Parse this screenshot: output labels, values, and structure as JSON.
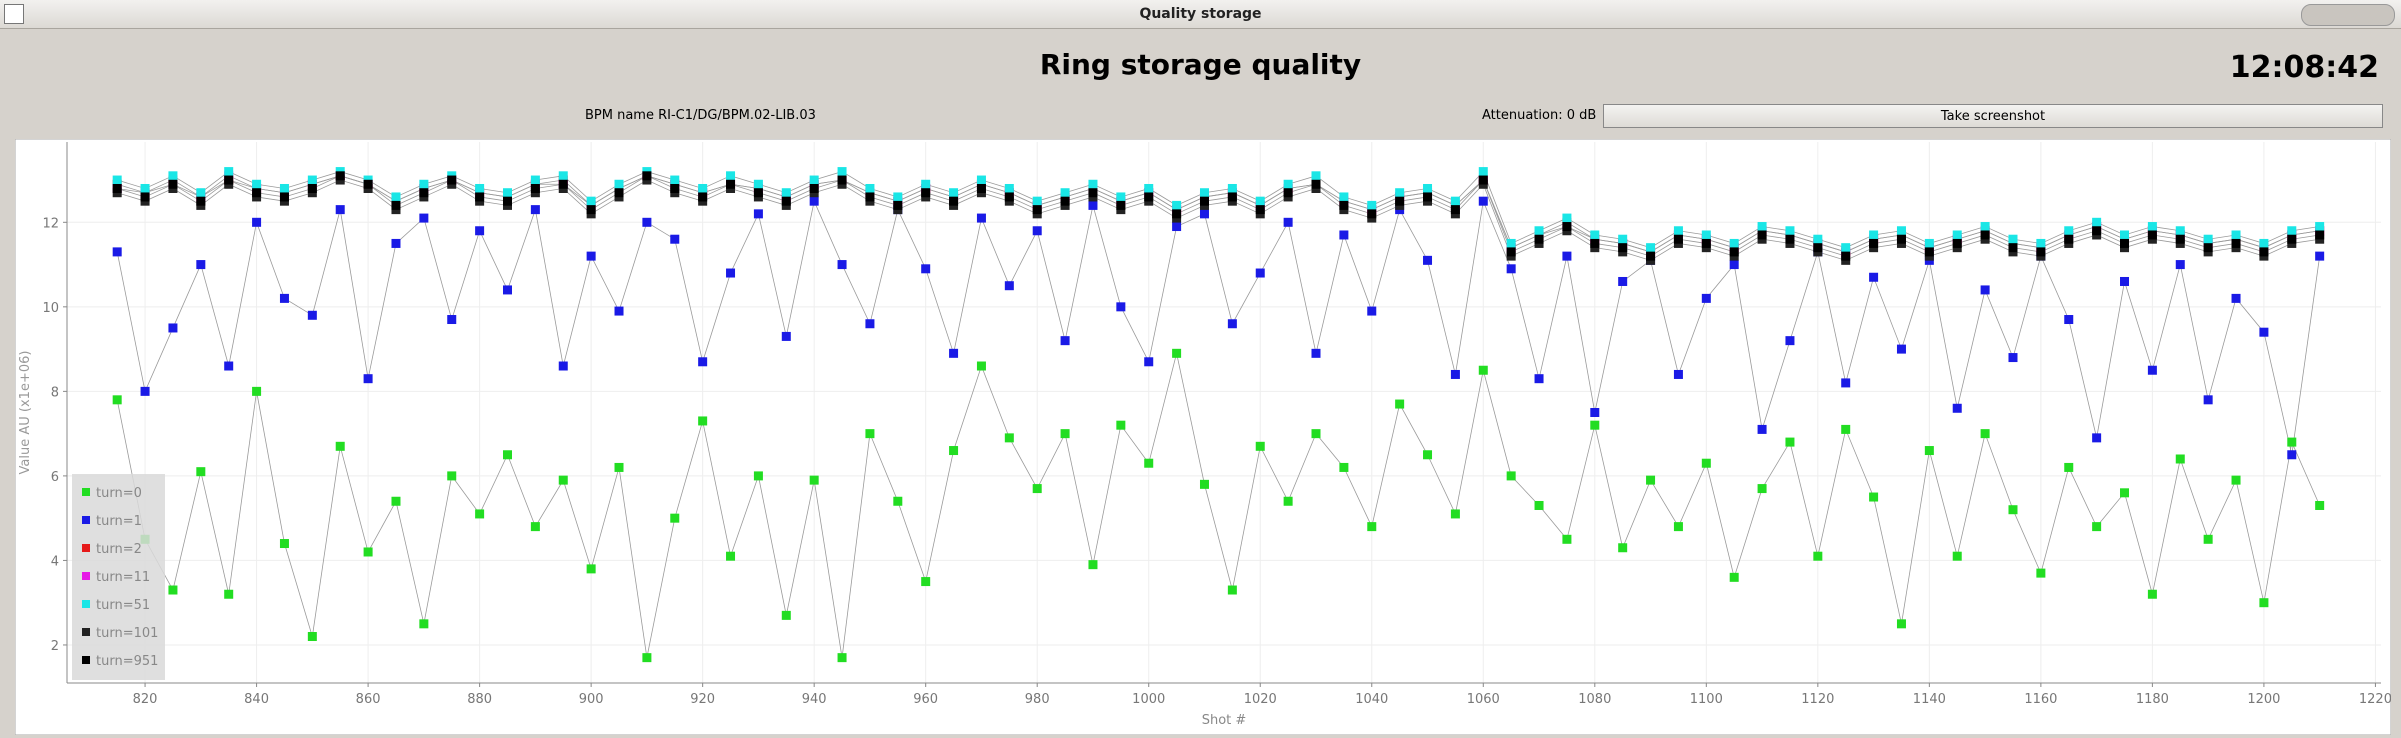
{
  "window_title": "Quality storage",
  "app_title": "Ring storage quality",
  "clock": "12:08:42",
  "bpm_name": "BPM name RI-C1/DG/BPM.02-LIB.03",
  "attenuation": "Attenuation: 0 dB",
  "button": "Take screenshot",
  "chart_data": {
    "type": "scatter",
    "xlabel": "Shot #",
    "ylabel": "Value AU (x1e+06)",
    "xlim": [
      806,
      1221
    ],
    "ylim": [
      1.1,
      13.9
    ],
    "xticks": [
      820,
      840,
      860,
      880,
      900,
      920,
      940,
      960,
      980,
      1000,
      1020,
      1040,
      1060,
      1080,
      1100,
      1120,
      1140,
      1160,
      1180,
      1200,
      1220
    ],
    "yticks": [
      2,
      4,
      6,
      8,
      10,
      12
    ],
    "grid": true,
    "legend": "lower left",
    "line_color": "#9a9a9a",
    "x": [
      815,
      820,
      825,
      830,
      835,
      840,
      845,
      850,
      855,
      860,
      865,
      870,
      875,
      880,
      885,
      890,
      895,
      900,
      905,
      910,
      915,
      920,
      925,
      930,
      935,
      940,
      945,
      950,
      955,
      960,
      965,
      970,
      975,
      980,
      985,
      990,
      995,
      1000,
      1005,
      1010,
      1015,
      1020,
      1025,
      1030,
      1035,
      1040,
      1045,
      1050,
      1055,
      1060,
      1065,
      1070,
      1075,
      1080,
      1085,
      1090,
      1095,
      1100,
      1105,
      1110,
      1115,
      1120,
      1125,
      1130,
      1135,
      1140,
      1145,
      1150,
      1155,
      1160,
      1165,
      1170,
      1175,
      1180,
      1185,
      1190,
      1195,
      1200,
      1205,
      1210
    ],
    "series": [
      {
        "name": "turn=0",
        "color": "#22dd22",
        "values": [
          7.8,
          4.5,
          3.3,
          6.1,
          3.2,
          8.0,
          4.4,
          2.2,
          6.7,
          4.2,
          5.4,
          2.5,
          6.0,
          5.1,
          6.5,
          4.8,
          5.9,
          3.8,
          6.2,
          1.7,
          5.0,
          7.3,
          4.1,
          6.0,
          2.7,
          5.9,
          1.7,
          7.0,
          5.4,
          3.5,
          6.6,
          8.6,
          6.9,
          5.7,
          7.0,
          3.9,
          7.2,
          6.3,
          8.9,
          5.8,
          3.3,
          6.7,
          5.4,
          7.0,
          6.2,
          4.8,
          7.7,
          6.5,
          5.1,
          8.5,
          6.0,
          5.3,
          4.5,
          7.2,
          4.3,
          5.9,
          4.8,
          6.3,
          3.6,
          5.7,
          6.8,
          4.1,
          7.1,
          5.5,
          2.5,
          6.6,
          4.1,
          7.0,
          5.2,
          3.7,
          6.2,
          4.8,
          5.6,
          3.2,
          6.4,
          4.5,
          5.9,
          3.0,
          6.8,
          5.3
        ]
      },
      {
        "name": "turn=1",
        "color": "#1a1ae6",
        "values": [
          11.3,
          8.0,
          9.5,
          11.0,
          8.6,
          12.0,
          10.2,
          9.8,
          12.3,
          8.3,
          11.5,
          12.1,
          9.7,
          11.8,
          10.4,
          12.3,
          8.6,
          11.2,
          9.9,
          12.0,
          11.6,
          8.7,
          10.8,
          12.2,
          9.3,
          12.5,
          11.0,
          9.6,
          12.3,
          10.9,
          8.9,
          12.1,
          10.5,
          11.8,
          9.2,
          12.4,
          10.0,
          8.7,
          11.9,
          12.2,
          9.6,
          10.8,
          12.0,
          8.9,
          11.7,
          9.9,
          12.3,
          11.1,
          8.4,
          12.5,
          10.9,
          8.3,
          11.2,
          7.5,
          10.6,
          11.1,
          8.4,
          10.2,
          11.0,
          7.1,
          9.2,
          11.3,
          8.2,
          10.7,
          9.0,
          11.1,
          7.6,
          10.4,
          8.8,
          11.2,
          9.7,
          6.9,
          10.6,
          8.5,
          11.0,
          7.8,
          10.2,
          9.4,
          6.5,
          11.2
        ]
      },
      {
        "name": "turn=2",
        "color": "#e61a1a",
        "values": [
          12.9,
          12.7,
          13.0,
          12.6,
          13.0,
          12.8,
          12.7,
          12.9,
          13.1,
          12.9,
          12.5,
          12.8,
          13.0,
          12.7,
          12.6,
          12.9,
          13.0,
          12.4,
          12.8,
          13.1,
          12.9,
          12.7,
          12.9,
          12.8,
          12.6,
          12.9,
          13.0,
          12.7,
          12.5,
          12.8,
          12.6,
          12.9,
          12.7,
          12.4,
          12.6,
          12.8,
          12.5,
          12.7,
          12.3,
          12.6,
          12.7,
          12.4,
          12.8,
          12.9,
          12.5,
          12.3,
          12.6,
          12.7,
          12.4,
          13.0,
          11.4,
          11.7,
          12.0,
          11.6,
          11.5,
          11.3,
          11.7,
          11.6,
          11.4,
          11.8,
          11.7,
          11.5,
          11.3,
          11.6,
          11.7,
          11.4,
          11.6,
          11.8,
          11.5,
          11.4,
          11.7,
          11.9,
          11.6,
          11.8,
          11.7,
          11.5,
          11.6,
          11.4,
          11.7,
          11.8
        ]
      },
      {
        "name": "turn=11",
        "color": "#e61ae6",
        "values": [
          12.8,
          12.7,
          12.9,
          12.6,
          13.1,
          12.8,
          12.7,
          12.9,
          13.1,
          12.9,
          12.5,
          12.8,
          13.0,
          12.7,
          12.6,
          12.9,
          12.9,
          12.4,
          12.8,
          13.1,
          12.9,
          12.7,
          12.9,
          12.8,
          12.6,
          12.9,
          13.0,
          12.7,
          12.5,
          12.8,
          12.6,
          12.9,
          12.7,
          12.4,
          12.6,
          12.8,
          12.5,
          12.7,
          12.3,
          12.6,
          12.7,
          12.4,
          12.8,
          12.9,
          12.5,
          12.3,
          12.6,
          12.7,
          12.4,
          13.0,
          11.4,
          11.7,
          11.9,
          11.6,
          11.5,
          11.3,
          11.7,
          11.6,
          11.4,
          11.8,
          11.7,
          11.5,
          11.3,
          11.6,
          11.7,
          11.4,
          11.6,
          11.8,
          11.5,
          11.4,
          11.7,
          11.9,
          11.6,
          11.8,
          11.7,
          11.5,
          11.6,
          11.4,
          11.7,
          11.8
        ]
      },
      {
        "name": "turn=51",
        "color": "#1ae6e6",
        "values": [
          13.0,
          12.8,
          13.1,
          12.7,
          13.2,
          12.9,
          12.8,
          13.0,
          13.2,
          13.0,
          12.6,
          12.9,
          13.1,
          12.8,
          12.7,
          13.0,
          13.1,
          12.5,
          12.9,
          13.2,
          13.0,
          12.8,
          13.1,
          12.9,
          12.7,
          13.0,
          13.2,
          12.8,
          12.6,
          12.9,
          12.7,
          13.0,
          12.8,
          12.5,
          12.7,
          12.9,
          12.6,
          12.8,
          12.4,
          12.7,
          12.8,
          12.5,
          12.9,
          13.1,
          12.6,
          12.4,
          12.7,
          12.8,
          12.5,
          13.2,
          11.5,
          11.8,
          12.1,
          11.7,
          11.6,
          11.4,
          11.8,
          11.7,
          11.5,
          11.9,
          11.8,
          11.6,
          11.4,
          11.7,
          11.8,
          11.5,
          11.7,
          11.9,
          11.6,
          11.5,
          11.8,
          12.0,
          11.7,
          11.9,
          11.8,
          11.6,
          11.7,
          11.5,
          11.8,
          11.9
        ]
      },
      {
        "name": "turn=101",
        "color": "#222222",
        "values": [
          12.7,
          12.5,
          12.8,
          12.4,
          12.9,
          12.6,
          12.5,
          12.7,
          13.0,
          12.8,
          12.3,
          12.6,
          12.9,
          12.5,
          12.4,
          12.7,
          12.8,
          12.2,
          12.6,
          13.0,
          12.7,
          12.5,
          12.8,
          12.6,
          12.4,
          12.7,
          12.9,
          12.5,
          12.3,
          12.6,
          12.4,
          12.7,
          12.5,
          12.2,
          12.4,
          12.6,
          12.3,
          12.5,
          12.1,
          12.4,
          12.5,
          12.2,
          12.6,
          12.8,
          12.3,
          12.1,
          12.4,
          12.5,
          12.2,
          12.9,
          11.2,
          11.5,
          11.8,
          11.4,
          11.3,
          11.1,
          11.5,
          11.4,
          11.2,
          11.6,
          11.5,
          11.3,
          11.1,
          11.4,
          11.5,
          11.2,
          11.4,
          11.6,
          11.3,
          11.2,
          11.5,
          11.7,
          11.4,
          11.6,
          11.5,
          11.3,
          11.4,
          11.2,
          11.5,
          11.6
        ]
      },
      {
        "name": "turn=951",
        "color": "#000000",
        "values": [
          12.8,
          12.6,
          12.9,
          12.5,
          13.0,
          12.7,
          12.6,
          12.8,
          13.1,
          12.9,
          12.4,
          12.7,
          13.0,
          12.6,
          12.5,
          12.8,
          12.9,
          12.3,
          12.7,
          13.1,
          12.8,
          12.6,
          12.9,
          12.7,
          12.5,
          12.8,
          13.0,
          12.6,
          12.4,
          12.7,
          12.5,
          12.8,
          12.6,
          12.3,
          12.5,
          12.7,
          12.4,
          12.6,
          12.2,
          12.5,
          12.6,
          12.3,
          12.7,
          12.9,
          12.4,
          12.2,
          12.5,
          12.6,
          12.3,
          13.0,
          11.3,
          11.6,
          11.9,
          11.5,
          11.4,
          11.2,
          11.6,
          11.5,
          11.3,
          11.7,
          11.6,
          11.4,
          11.2,
          11.5,
          11.6,
          11.3,
          11.5,
          11.7,
          11.4,
          11.3,
          11.6,
          11.8,
          11.5,
          11.7,
          11.6,
          11.4,
          11.5,
          11.3,
          11.6,
          11.7
        ]
      }
    ]
  }
}
